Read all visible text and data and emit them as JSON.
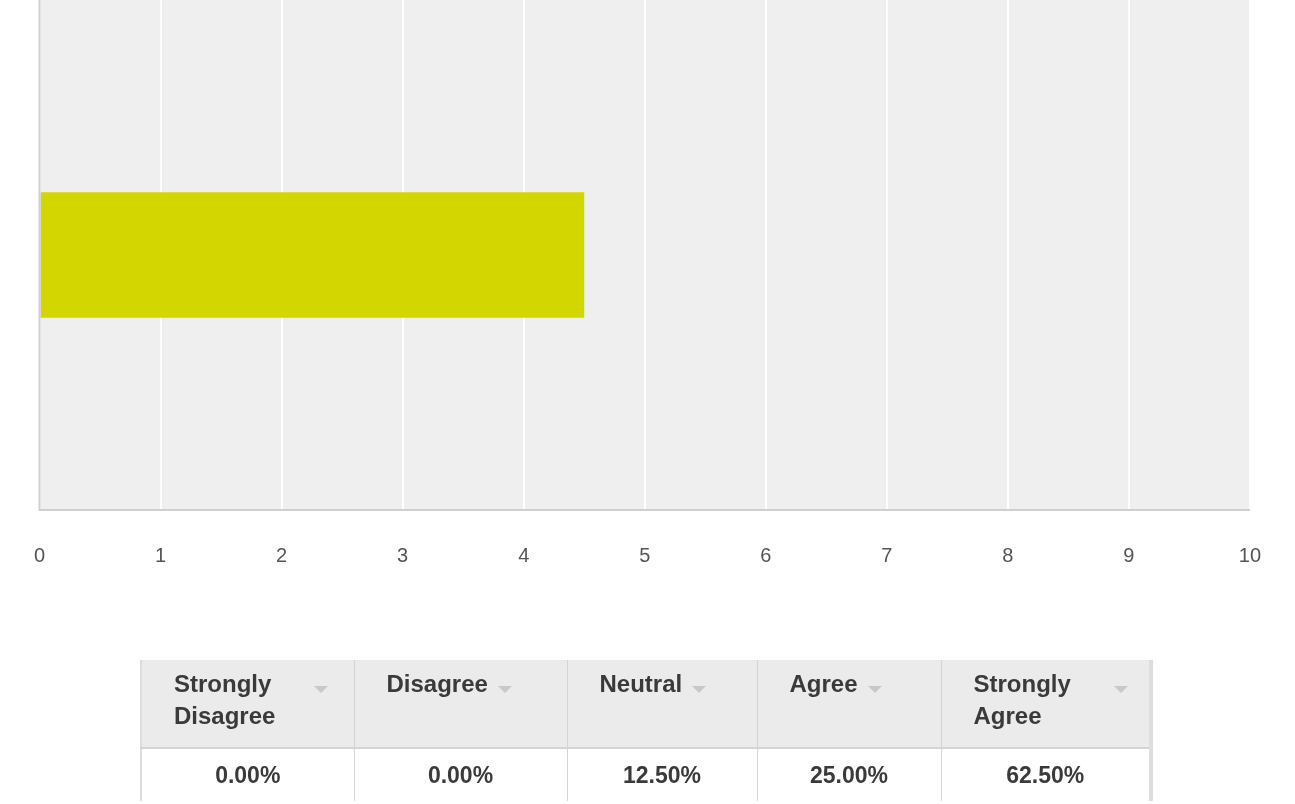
{
  "chart_data": [
    {
      "type": "bar",
      "orientation": "horizontal",
      "categories": [
        null
      ],
      "values": [
        4.5
      ],
      "color": "#d4d600",
      "xlim": [
        0,
        10
      ],
      "xticks": [
        0,
        1,
        2,
        3,
        4,
        5,
        6,
        7,
        8,
        9,
        10
      ],
      "grid": "x",
      "tick_labels": "x"
    },
    {
      "type": "other",
      "categories": [
        "Strongly Disagree",
        "Disagree",
        "Neutral",
        "Agree",
        "Strongly Agree"
      ],
      "value_labels": [
        "0.00%",
        "0.00%",
        "12.50%",
        "25.00%",
        "62.50%"
      ]
    }
  ]
}
